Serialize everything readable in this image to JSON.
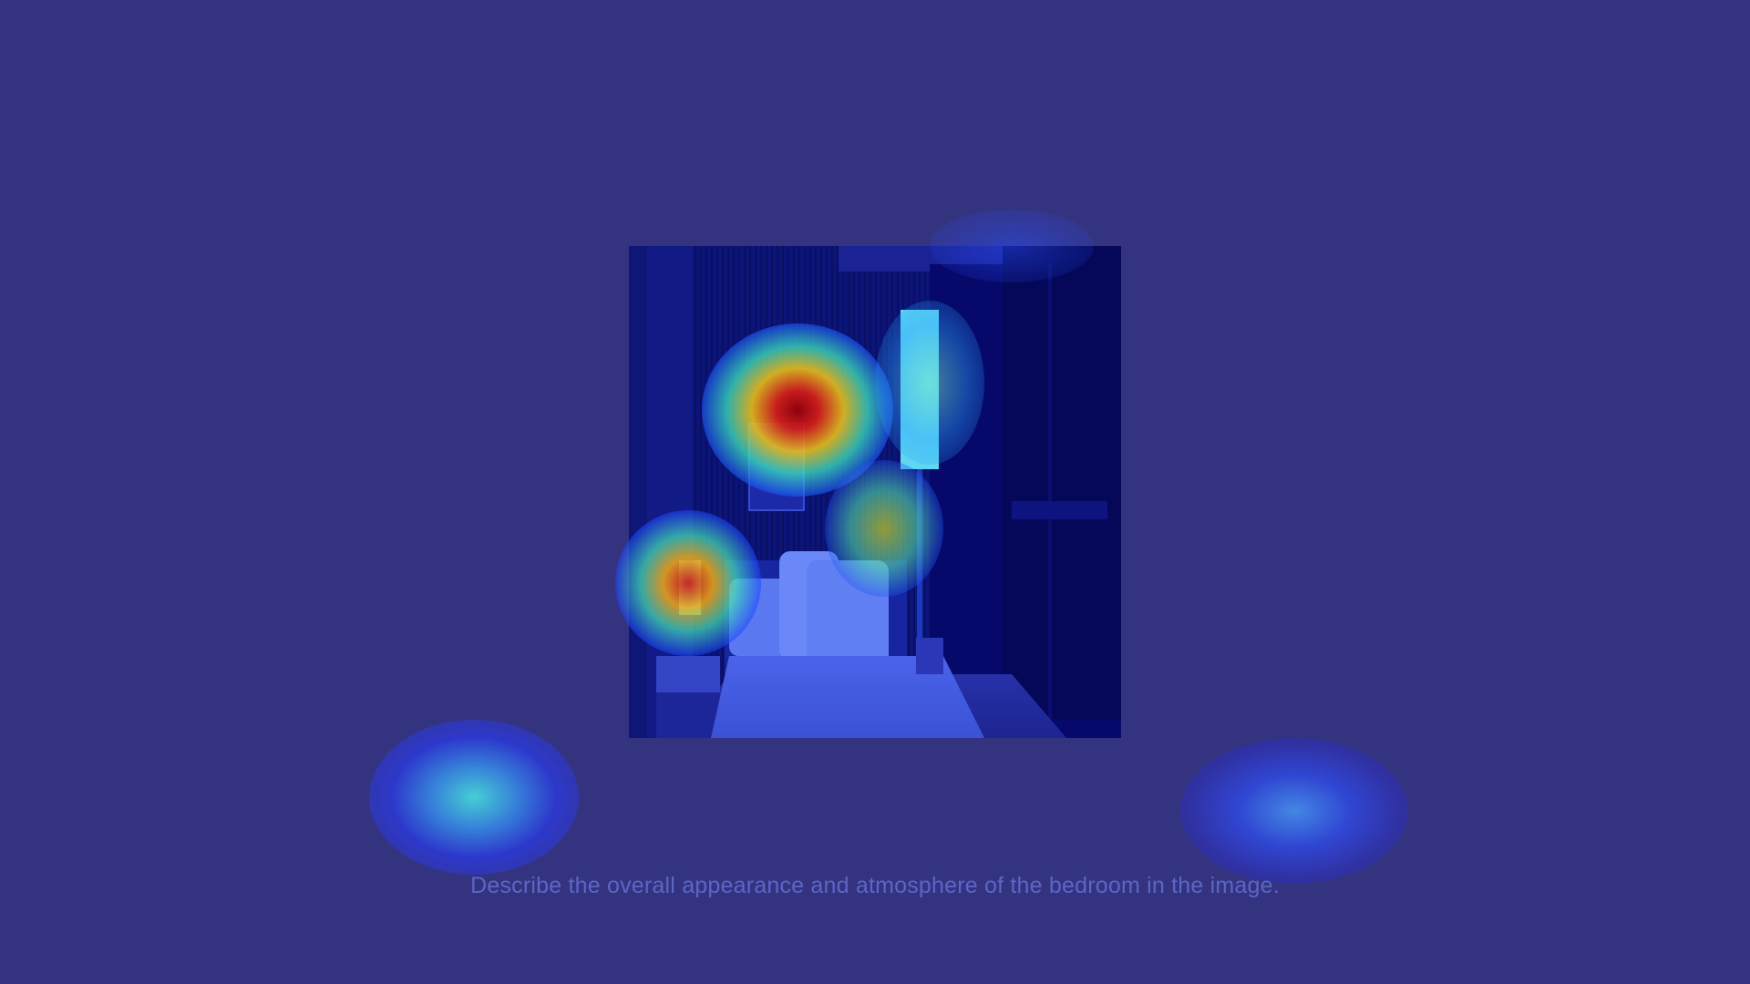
{
  "caption": "Describe the overall appearance and atmosphere of the bedroom in the image.",
  "colors": {
    "background": "#34337f",
    "caption_text": "#5a66c8",
    "heat_low": "#2e3cff",
    "heat_mid": "#3fd2d8",
    "heat_high": "#d80010"
  },
  "image": {
    "subject": "bedroom-photo",
    "overlay": "attention-heatmap"
  }
}
